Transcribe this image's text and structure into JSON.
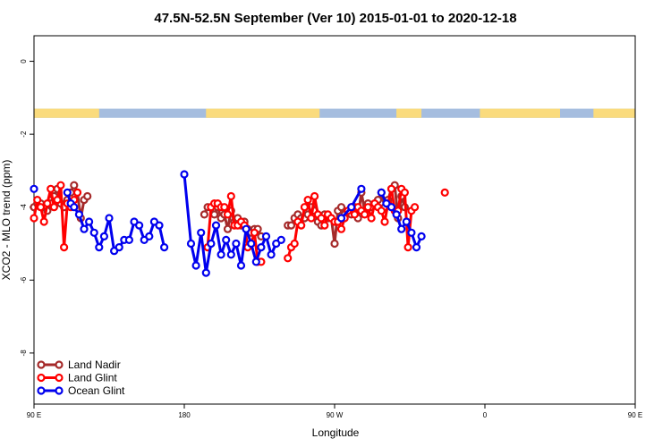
{
  "chart_data": {
    "type": "line",
    "title": "47.5N-52.5N September (Ver 10)   2015-01-01 to 2020-12-18",
    "xlabel": "Longitude",
    "ylabel": "XCO2 - MLO trend (ppm)",
    "xlim": [
      90,
      450
    ],
    "ylim": [
      -9.4,
      0.7
    ],
    "x_ticks": [
      {
        "value": 90,
        "label": "90 E"
      },
      {
        "value": 180,
        "label": "180"
      },
      {
        "value": 270,
        "label": "90 W"
      },
      {
        "value": 360,
        "label": "0"
      },
      {
        "value": 450,
        "label": "90 E"
      },
      {
        "value": 540,
        "label": "180"
      }
    ],
    "y_ticks": [
      {
        "value": 0,
        "label": "0"
      },
      {
        "value": -2,
        "label": "-2"
      },
      {
        "value": -4,
        "label": "-4"
      },
      {
        "value": -6,
        "label": "-6"
      },
      {
        "value": -8,
        "label": "-8"
      }
    ],
    "land_sea_strip": {
      "y_range": [
        -1.55,
        -1.3
      ],
      "ocean_color": "#a5bddf",
      "land_color": "#fadb7d",
      "land_spans": [
        [
          90,
          129
        ],
        [
          193,
          261
        ],
        [
          307,
          322
        ],
        [
          357,
          405
        ],
        [
          425,
          458
        ]
      ]
    },
    "grid": false,
    "legend_position": "bottom-left",
    "series": [
      {
        "name": "Land Nadir",
        "color": "#a52a2a",
        "points": [
          [
            90,
            -4.0
          ],
          [
            92,
            -3.9
          ],
          [
            94,
            -3.9
          ],
          [
            96,
            -4.0
          ],
          [
            98,
            -4.1
          ],
          [
            100,
            -3.9
          ],
          [
            102,
            -3.7
          ],
          [
            104,
            -3.5
          ],
          [
            106,
            -3.9
          ],
          [
            108,
            -4.0
          ],
          [
            110,
            -3.8
          ],
          [
            112,
            -3.6
          ],
          [
            114,
            -3.4
          ],
          [
            116,
            -3.6
          ],
          [
            118,
            -4.3
          ],
          [
            120,
            -3.8
          ],
          [
            122,
            -3.7
          ],
          [
            192,
            -4.2
          ],
          [
            194,
            -4.0
          ],
          [
            196,
            -4.0
          ],
          [
            198,
            -4.2
          ],
          [
            200,
            -4.0
          ],
          [
            202,
            -4.3
          ],
          [
            204,
            -4.2
          ],
          [
            206,
            -4.6
          ],
          [
            208,
            -4.1
          ],
          [
            210,
            -4.4
          ],
          [
            212,
            -4.3
          ],
          [
            214,
            -4.5
          ],
          [
            216,
            -4.4
          ],
          [
            218,
            -4.6
          ],
          [
            220,
            -4.7
          ],
          [
            222,
            -4.6
          ],
          [
            224,
            -4.6
          ],
          [
            226,
            -4.8
          ],
          [
            242,
            -4.5
          ],
          [
            244,
            -4.5
          ],
          [
            246,
            -4.3
          ],
          [
            248,
            -4.2
          ],
          [
            250,
            -4.3
          ],
          [
            252,
            -4.3
          ],
          [
            254,
            -4.2
          ],
          [
            256,
            -4.0
          ],
          [
            258,
            -4.1
          ],
          [
            260,
            -4.4
          ],
          [
            262,
            -4.5
          ],
          [
            264,
            -4.2
          ],
          [
            266,
            -4.3
          ],
          [
            268,
            -4.3
          ],
          [
            270,
            -5.0
          ],
          [
            272,
            -4.1
          ],
          [
            274,
            -4.0
          ],
          [
            276,
            -4.2
          ],
          [
            278,
            -4.1
          ],
          [
            280,
            -4.2
          ],
          [
            282,
            -4.0
          ],
          [
            284,
            -4.3
          ],
          [
            286,
            -3.6
          ],
          [
            288,
            -4.1
          ],
          [
            290,
            -3.9
          ],
          [
            292,
            -4.0
          ],
          [
            294,
            -3.9
          ],
          [
            296,
            -3.8
          ],
          [
            298,
            -3.6
          ],
          [
            300,
            -4.0
          ],
          [
            302,
            -3.8
          ],
          [
            304,
            -3.5
          ],
          [
            306,
            -3.4
          ],
          [
            308,
            -4.3
          ],
          [
            310,
            -3.7
          ],
          [
            312,
            -4.0
          ]
        ]
      },
      {
        "name": "Land Glint",
        "color": "#ff0000",
        "points": [
          [
            90,
            -4.3
          ],
          [
            92,
            -3.8
          ],
          [
            94,
            -4.0
          ],
          [
            96,
            -4.4
          ],
          [
            98,
            -3.9
          ],
          [
            100,
            -3.5
          ],
          [
            102,
            -4.0
          ],
          [
            104,
            -3.8
          ],
          [
            106,
            -3.4
          ],
          [
            108,
            -5.1
          ],
          [
            110,
            -3.9
          ],
          [
            112,
            -4.0
          ],
          [
            114,
            -3.8
          ],
          [
            116,
            -3.6
          ],
          [
            194,
            -5.1
          ],
          [
            196,
            -4.0
          ],
          [
            198,
            -3.9
          ],
          [
            200,
            -3.9
          ],
          [
            202,
            -4.0
          ],
          [
            204,
            -4.0
          ],
          [
            206,
            -4.2
          ],
          [
            208,
            -3.7
          ],
          [
            210,
            -4.5
          ],
          [
            212,
            -4.5
          ],
          [
            214,
            -4.4
          ],
          [
            216,
            -4.5
          ],
          [
            218,
            -5.1
          ],
          [
            220,
            -5.0
          ],
          [
            222,
            -4.7
          ],
          [
            224,
            -5.5
          ],
          [
            226,
            -5.5
          ],
          [
            242,
            -5.4
          ],
          [
            244,
            -5.1
          ],
          [
            246,
            -5.0
          ],
          [
            248,
            -4.4
          ],
          [
            250,
            -4.5
          ],
          [
            252,
            -4.0
          ],
          [
            254,
            -3.8
          ],
          [
            256,
            -4.3
          ],
          [
            258,
            -3.7
          ],
          [
            260,
            -4.2
          ],
          [
            262,
            -4.3
          ],
          [
            264,
            -4.5
          ],
          [
            266,
            -4.2
          ],
          [
            268,
            -4.3
          ],
          [
            270,
            -4.4
          ],
          [
            272,
            -4.4
          ],
          [
            274,
            -4.6
          ],
          [
            276,
            -4.3
          ],
          [
            278,
            -4.1
          ],
          [
            280,
            -4.0
          ],
          [
            282,
            -4.2
          ],
          [
            284,
            -4.0
          ],
          [
            286,
            -4.1
          ],
          [
            288,
            -4.2
          ],
          [
            290,
            -4.0
          ],
          [
            292,
            -4.3
          ],
          [
            294,
            -3.9
          ],
          [
            296,
            -4.0
          ],
          [
            298,
            -4.1
          ],
          [
            300,
            -4.4
          ],
          [
            302,
            -3.9
          ],
          [
            304,
            -3.5
          ],
          [
            306,
            -4.1
          ],
          [
            308,
            -4.1
          ],
          [
            310,
            -3.5
          ],
          [
            312,
            -3.6
          ],
          [
            314,
            -5.1
          ],
          [
            316,
            -4.1
          ],
          [
            318,
            -4.0
          ],
          [
            336,
            -3.6
          ]
        ]
      },
      {
        "name": "Ocean Glint",
        "color": "#0000ee",
        "points": [
          [
            90,
            -3.5
          ],
          [
            110,
            -3.6
          ],
          [
            112,
            -3.9
          ],
          [
            114,
            -4.0
          ],
          [
            117,
            -4.2
          ],
          [
            120,
            -4.6
          ],
          [
            123,
            -4.4
          ],
          [
            126,
            -4.7
          ],
          [
            129,
            -5.1
          ],
          [
            132,
            -4.8
          ],
          [
            135,
            -4.3
          ],
          [
            138,
            -5.2
          ],
          [
            141,
            -5.1
          ],
          [
            144,
            -4.9
          ],
          [
            147,
            -4.9
          ],
          [
            150,
            -4.4
          ],
          [
            153,
            -4.5
          ],
          [
            156,
            -4.9
          ],
          [
            159,
            -4.8
          ],
          [
            162,
            -4.4
          ],
          [
            165,
            -4.5
          ],
          [
            168,
            -5.1
          ],
          [
            180,
            -3.1
          ],
          [
            184,
            -5.0
          ],
          [
            187,
            -5.6
          ],
          [
            190,
            -4.7
          ],
          [
            193,
            -5.8
          ],
          [
            196,
            -5.0
          ],
          [
            199,
            -4.5
          ],
          [
            202,
            -5.3
          ],
          [
            205,
            -4.9
          ],
          [
            208,
            -5.3
          ],
          [
            211,
            -5.0
          ],
          [
            214,
            -5.6
          ],
          [
            217,
            -4.6
          ],
          [
            220,
            -5.0
          ],
          [
            223,
            -5.5
          ],
          [
            226,
            -5.1
          ],
          [
            229,
            -4.8
          ],
          [
            232,
            -5.3
          ],
          [
            235,
            -5.0
          ],
          [
            238,
            -4.9
          ],
          [
            274,
            -4.3
          ],
          [
            280,
            -4.0
          ],
          [
            286,
            -3.5
          ],
          [
            298,
            -3.6
          ],
          [
            301,
            -3.9
          ],
          [
            304,
            -4.0
          ],
          [
            307,
            -4.2
          ],
          [
            310,
            -4.6
          ],
          [
            313,
            -4.4
          ],
          [
            316,
            -4.7
          ],
          [
            319,
            -5.1
          ],
          [
            322,
            -4.8
          ]
        ]
      }
    ]
  }
}
